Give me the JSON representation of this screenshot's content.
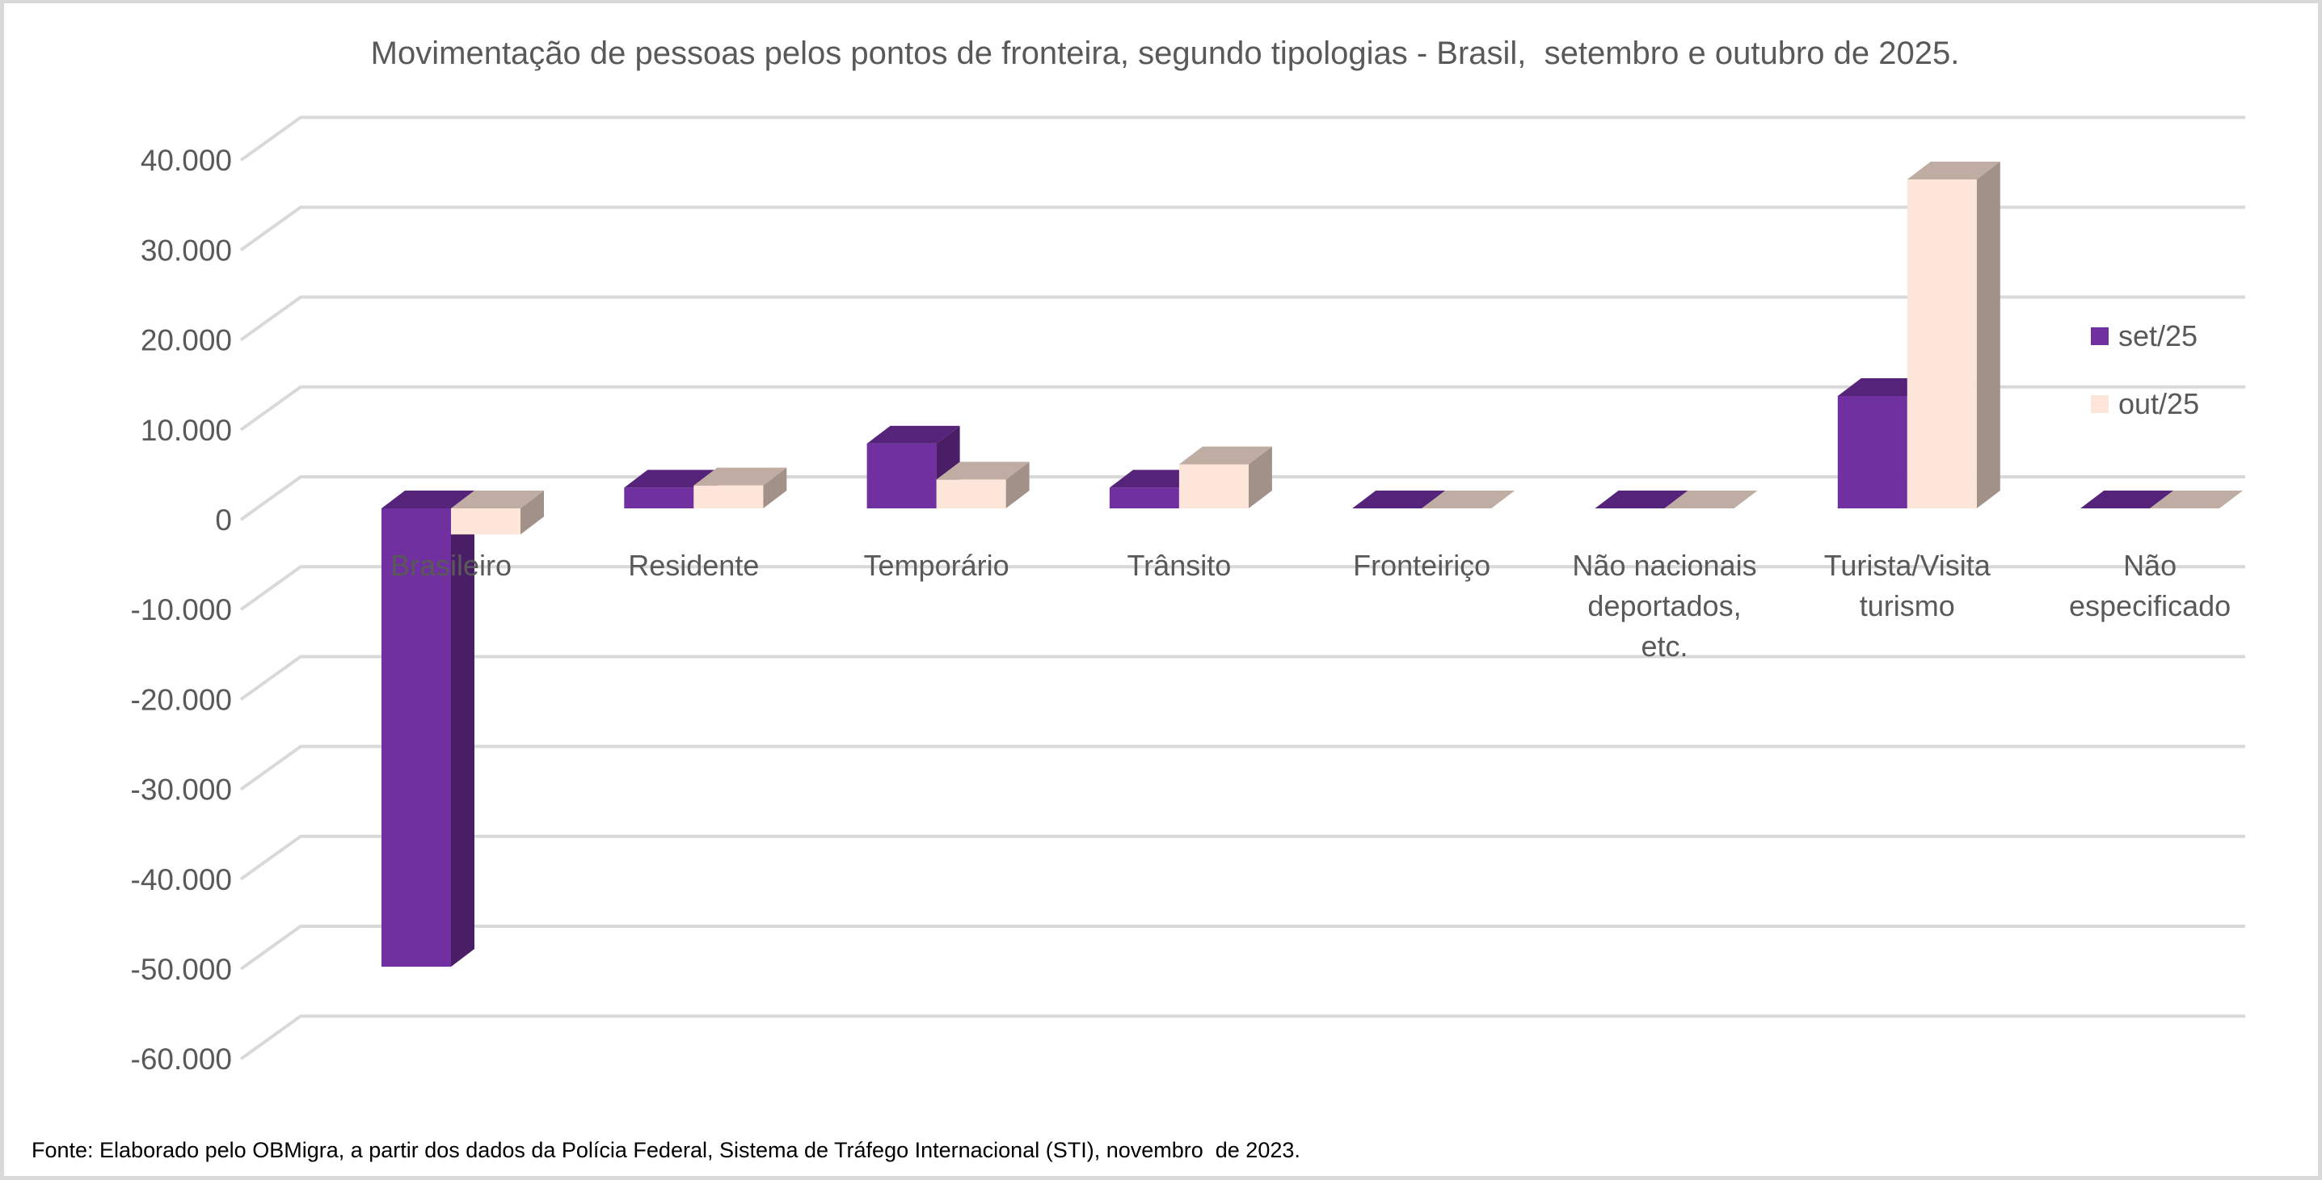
{
  "chart_data": {
    "type": "bar",
    "subtype": "3d-clustered-column",
    "title": "Movimentação de pessoas pelos pontos de fronteira, segundo tipologias - Brasil,  setembro e outubro de 2025.",
    "xlabel": "",
    "ylabel": "",
    "categories": [
      [
        "Brasileiro"
      ],
      [
        "Residente"
      ],
      [
        "Temporário"
      ],
      [
        "Trânsito"
      ],
      [
        "Fronteiriço"
      ],
      [
        "Não nacionais",
        "deportados,",
        "etc."
      ],
      [
        "Turista/Visita",
        "turismo"
      ],
      [
        "Não",
        "especificado"
      ]
    ],
    "category_names": [
      "Brasileiro",
      "Residente",
      "Temporário",
      "Trânsito",
      "Fronteiriço",
      "Não nacionais deportados, etc.",
      "Turista/Visita turismo",
      "Não especificado"
    ],
    "series": [
      {
        "name": "set/25",
        "color": "#7030a0",
        "top": "#552379",
        "side": "#4a1e66",
        "values": [
          -51000,
          2300,
          7200,
          2300,
          0,
          0,
          12500,
          0
        ]
      },
      {
        "name": "out/25",
        "color": "#fde5d9",
        "top": "#bfaca2",
        "side": "#a29189",
        "values": [
          -2900,
          2550,
          3200,
          4900,
          0,
          0,
          36600,
          0
        ]
      }
    ],
    "ylim": [
      -60000,
      40000
    ],
    "yticks": [
      40000,
      30000,
      20000,
      10000,
      0,
      -10000,
      -20000,
      -30000,
      -40000,
      -50000,
      -60000
    ],
    "ytick_labels": [
      "40.000",
      "30.000",
      "20.000",
      "10.000",
      "0",
      "-10.000",
      "-20.000",
      "-30.000",
      "-40.000",
      "-50.000",
      "-60.000"
    ],
    "grid": true,
    "legend_position": "right"
  },
  "legend": {
    "items": [
      {
        "label": "set/25",
        "color": "#7030a0"
      },
      {
        "label": "out/25",
        "color": "#fde5d9"
      }
    ]
  },
  "footer": {
    "source": "Fonte: Elaborado pelo OBMigra, a partir dos dados da Polícia Federal, Sistema de Tráfego Internacional (STI), novembro  de 2023."
  }
}
